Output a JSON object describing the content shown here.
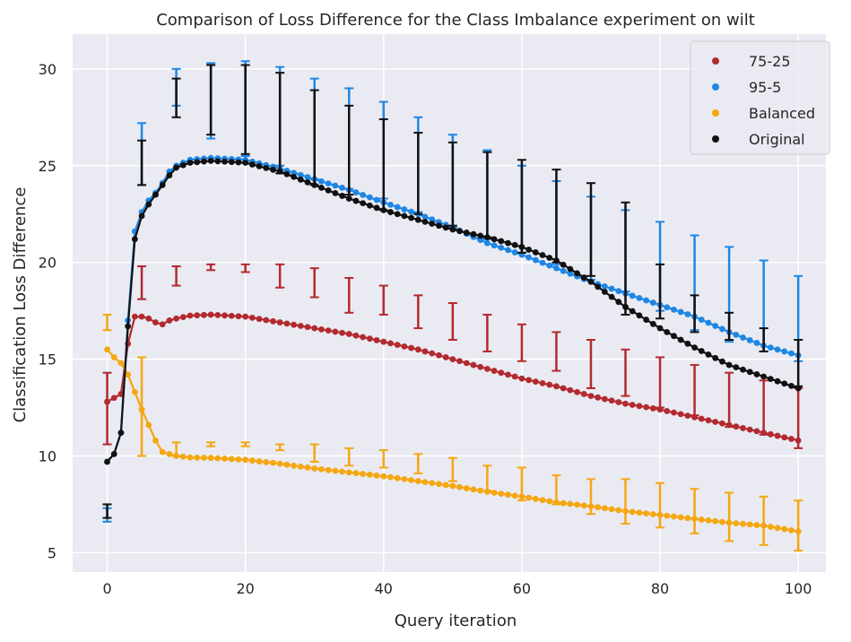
{
  "chart_data": {
    "type": "line",
    "title": "Comparison of Loss Difference for the Class Imbalance experiment on wilt",
    "xlabel": "Query iteration",
    "ylabel": "Classification Loss Difference",
    "xlim": [
      -5,
      104
    ],
    "ylim": [
      4.0,
      31.8
    ],
    "xticks": [
      0,
      20,
      40,
      60,
      80,
      100
    ],
    "yticks": [
      5,
      10,
      15,
      20,
      25,
      30
    ],
    "grid": true,
    "legend_position": "top-right",
    "series": [
      {
        "name": "75-25",
        "color": "#b22a2f",
        "anchors": [
          [
            0,
            12.8
          ],
          [
            1,
            13.0
          ],
          [
            2,
            13.2
          ],
          [
            3,
            15.8
          ],
          [
            4,
            17.2
          ],
          [
            5,
            17.2
          ],
          [
            6,
            17.1
          ],
          [
            7,
            16.9
          ],
          [
            8,
            16.8
          ],
          [
            9,
            17.0
          ],
          [
            10,
            17.1
          ],
          [
            12,
            17.25
          ],
          [
            15,
            17.3
          ],
          [
            20,
            17.2
          ],
          [
            25,
            16.9
          ],
          [
            30,
            16.6
          ],
          [
            35,
            16.3
          ],
          [
            40,
            15.9
          ],
          [
            45,
            15.5
          ],
          [
            50,
            15.0
          ],
          [
            55,
            14.5
          ],
          [
            60,
            14.0
          ],
          [
            65,
            13.6
          ],
          [
            70,
            13.1
          ],
          [
            75,
            12.7
          ],
          [
            80,
            12.4
          ],
          [
            85,
            12.0
          ],
          [
            90,
            11.6
          ],
          [
            95,
            11.2
          ],
          [
            100,
            10.8
          ]
        ],
        "errorbars": [
          [
            0,
            10.6,
            14.3
          ],
          [
            5,
            18.1,
            19.8
          ],
          [
            10,
            18.8,
            19.8
          ],
          [
            15,
            19.6,
            19.9
          ],
          [
            20,
            19.5,
            19.9
          ],
          [
            25,
            18.7,
            19.9
          ],
          [
            30,
            18.2,
            19.7
          ],
          [
            35,
            17.4,
            19.2
          ],
          [
            40,
            17.3,
            18.8
          ],
          [
            45,
            16.6,
            18.3
          ],
          [
            50,
            16.0,
            17.9
          ],
          [
            55,
            15.4,
            17.3
          ],
          [
            60,
            14.9,
            16.8
          ],
          [
            65,
            14.4,
            16.4
          ],
          [
            70,
            13.5,
            16.0
          ],
          [
            75,
            13.1,
            15.5
          ],
          [
            80,
            12.5,
            15.1
          ],
          [
            85,
            12.1,
            14.7
          ],
          [
            90,
            11.5,
            14.3
          ],
          [
            95,
            11.1,
            13.9
          ],
          [
            100,
            10.4,
            13.5
          ]
        ]
      },
      {
        "name": "95-5",
        "color": "#1e87e5",
        "anchors": [
          [
            0,
            9.7
          ],
          [
            1,
            10.1
          ],
          [
            2,
            11.2
          ],
          [
            3,
            17.0
          ],
          [
            4,
            21.6
          ],
          [
            5,
            22.6
          ],
          [
            6,
            23.2
          ],
          [
            7,
            23.6
          ],
          [
            8,
            24.1
          ],
          [
            9,
            24.7
          ],
          [
            10,
            25.0
          ],
          [
            12,
            25.3
          ],
          [
            15,
            25.4
          ],
          [
            20,
            25.3
          ],
          [
            25,
            24.85
          ],
          [
            30,
            24.3
          ],
          [
            35,
            23.75
          ],
          [
            40,
            23.1
          ],
          [
            45,
            22.5
          ],
          [
            50,
            21.8
          ],
          [
            55,
            21.0
          ],
          [
            60,
            20.4
          ],
          [
            65,
            19.7
          ],
          [
            70,
            19.0
          ],
          [
            75,
            18.4
          ],
          [
            80,
            17.8
          ],
          [
            85,
            17.2
          ],
          [
            90,
            16.4
          ],
          [
            95,
            15.7
          ],
          [
            100,
            15.2
          ]
        ],
        "errorbars": [
          [
            0,
            6.6,
            7.3
          ],
          [
            5,
            24.0,
            27.2
          ],
          [
            10,
            28.1,
            30.0
          ],
          [
            15,
            26.4,
            30.3
          ],
          [
            20,
            25.5,
            30.4
          ],
          [
            25,
            25.0,
            30.1
          ],
          [
            30,
            24.3,
            29.5
          ],
          [
            35,
            23.8,
            29.0
          ],
          [
            40,
            23.3,
            28.3
          ],
          [
            45,
            22.6,
            27.5
          ],
          [
            50,
            21.8,
            26.6
          ],
          [
            55,
            21.2,
            25.8
          ],
          [
            60,
            20.5,
            25.0
          ],
          [
            65,
            19.9,
            24.2
          ],
          [
            70,
            19.1,
            23.4
          ],
          [
            75,
            18.5,
            22.7
          ],
          [
            80,
            17.5,
            22.1
          ],
          [
            85,
            16.5,
            21.4
          ],
          [
            90,
            15.9,
            20.8
          ],
          [
            95,
            15.4,
            20.1
          ],
          [
            100,
            14.9,
            19.3
          ]
        ]
      },
      {
        "name": "Balanced",
        "color": "#f5a711",
        "anchors": [
          [
            0,
            15.5
          ],
          [
            1,
            15.1
          ],
          [
            2,
            14.8
          ],
          [
            3,
            14.2
          ],
          [
            4,
            13.3
          ],
          [
            5,
            12.4
          ],
          [
            6,
            11.6
          ],
          [
            7,
            10.8
          ],
          [
            8,
            10.2
          ],
          [
            9,
            10.1
          ],
          [
            10,
            10.0
          ],
          [
            12,
            9.92
          ],
          [
            15,
            9.9
          ],
          [
            20,
            9.8
          ],
          [
            25,
            9.6
          ],
          [
            30,
            9.35
          ],
          [
            35,
            9.15
          ],
          [
            40,
            8.95
          ],
          [
            45,
            8.7
          ],
          [
            50,
            8.45
          ],
          [
            55,
            8.15
          ],
          [
            60,
            7.9
          ],
          [
            65,
            7.6
          ],
          [
            70,
            7.4
          ],
          [
            75,
            7.15
          ],
          [
            80,
            6.95
          ],
          [
            85,
            6.75
          ],
          [
            90,
            6.55
          ],
          [
            95,
            6.4
          ],
          [
            100,
            6.1
          ]
        ],
        "errorbars": [
          [
            0,
            16.5,
            17.3
          ],
          [
            5,
            10.0,
            15.1
          ],
          [
            10,
            10.0,
            10.7
          ],
          [
            15,
            10.5,
            10.7
          ],
          [
            20,
            10.5,
            10.7
          ],
          [
            25,
            10.3,
            10.6
          ],
          [
            30,
            9.7,
            10.6
          ],
          [
            35,
            9.5,
            10.4
          ],
          [
            40,
            9.4,
            10.3
          ],
          [
            45,
            9.1,
            10.1
          ],
          [
            50,
            8.7,
            9.9
          ],
          [
            55,
            8.2,
            9.5
          ],
          [
            60,
            7.7,
            9.4
          ],
          [
            65,
            7.5,
            9.0
          ],
          [
            70,
            7.0,
            8.8
          ],
          [
            75,
            6.5,
            8.8
          ],
          [
            80,
            6.3,
            8.6
          ],
          [
            85,
            6.0,
            8.3
          ],
          [
            90,
            5.6,
            8.1
          ],
          [
            95,
            5.4,
            7.9
          ],
          [
            100,
            5.1,
            7.7
          ]
        ]
      },
      {
        "name": "Original",
        "color": "#111111",
        "anchors": [
          [
            0,
            9.7
          ],
          [
            1,
            10.1
          ],
          [
            2,
            11.2
          ],
          [
            3,
            16.7
          ],
          [
            4,
            21.2
          ],
          [
            5,
            22.4
          ],
          [
            6,
            23.0
          ],
          [
            7,
            23.5
          ],
          [
            8,
            24.0
          ],
          [
            9,
            24.5
          ],
          [
            10,
            24.9
          ],
          [
            12,
            25.15
          ],
          [
            15,
            25.25
          ],
          [
            20,
            25.15
          ],
          [
            25,
            24.7
          ],
          [
            30,
            24.0
          ],
          [
            35,
            23.3
          ],
          [
            40,
            22.7
          ],
          [
            45,
            22.2
          ],
          [
            50,
            21.7
          ],
          [
            55,
            21.3
          ],
          [
            60,
            20.8
          ],
          [
            65,
            20.1
          ],
          [
            70,
            19.0
          ],
          [
            75,
            17.7
          ],
          [
            80,
            16.6
          ],
          [
            85,
            15.6
          ],
          [
            90,
            14.7
          ],
          [
            95,
            14.1
          ],
          [
            100,
            13.5
          ]
        ],
        "errorbars": [
          [
            0,
            6.8,
            7.5
          ],
          [
            5,
            24.0,
            26.3
          ],
          [
            10,
            27.5,
            29.5
          ],
          [
            15,
            26.6,
            30.2
          ],
          [
            20,
            25.6,
            30.2
          ],
          [
            25,
            24.6,
            29.8
          ],
          [
            30,
            24.0,
            28.9
          ],
          [
            35,
            23.5,
            28.1
          ],
          [
            40,
            22.7,
            27.4
          ],
          [
            45,
            22.5,
            26.7
          ],
          [
            50,
            21.9,
            26.2
          ],
          [
            55,
            21.3,
            25.7
          ],
          [
            60,
            20.5,
            25.3
          ],
          [
            65,
            20.0,
            24.8
          ],
          [
            70,
            19.3,
            24.1
          ],
          [
            75,
            17.3,
            23.1
          ],
          [
            80,
            17.1,
            19.9
          ],
          [
            85,
            16.4,
            18.3
          ],
          [
            90,
            16.0,
            17.4
          ],
          [
            95,
            15.4,
            16.6
          ],
          [
            100,
            13.6,
            16.0
          ]
        ]
      }
    ]
  }
}
